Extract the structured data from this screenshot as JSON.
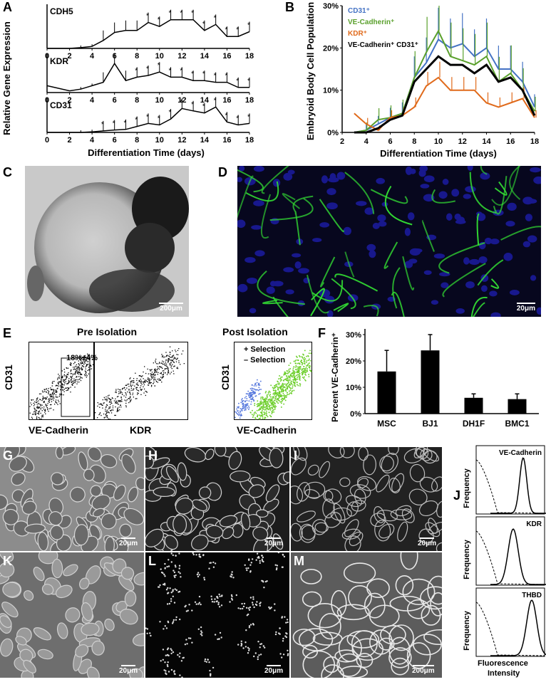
{
  "panels": {
    "A": {
      "letter": "A",
      "ylabel": "Relative Gene Expression",
      "xlabel": "Differentiation Time (days)",
      "x_ticks": [
        "0",
        "2",
        "4",
        "6",
        "8",
        "10",
        "12",
        "14",
        "16",
        "18"
      ]
    },
    "B": {
      "letter": "B",
      "ylabel": "Embryoid Body Cell Population",
      "xlabel": "Differentiation Time (days)",
      "y_ticks": [
        "0%",
        "10%",
        "20%",
        "30%"
      ],
      "x_ticks": [
        "2",
        "4",
        "6",
        "8",
        "10",
        "12",
        "14",
        "16",
        "18"
      ]
    },
    "C": {
      "letter": "C",
      "scale": "200μm"
    },
    "D": {
      "letter": "D",
      "scale": "20μm"
    },
    "E": {
      "letter": "E",
      "pre_title": "Pre Isolation",
      "post_title": "Post Isolation",
      "gate": "18%±4%",
      "ylabel": "CD31",
      "x1": "VE-Cadherin",
      "x2": "KDR",
      "post_ylabel": "CD31",
      "post_xlabel": "VE-Cadherin",
      "plus_sel": "+ Selection",
      "minus_sel": "– Selection"
    },
    "F": {
      "letter": "F",
      "ylabel": "Percent VE-Cadherin⁺",
      "y_ticks": [
        "0%",
        "10%",
        "20%",
        "30%"
      ]
    },
    "G": {
      "letter": "G",
      "scale": "20μm"
    },
    "H": {
      "letter": "H",
      "scale": "20μm"
    },
    "I": {
      "letter": "I",
      "scale": "20μm"
    },
    "K": {
      "letter": "K",
      "scale": "20μm"
    },
    "L": {
      "letter": "L",
      "scale": "20μm"
    },
    "M": {
      "letter": "M",
      "scale": "200μm"
    },
    "J": {
      "letter": "J",
      "ylabel": "Frequency",
      "xlabel_1": "Fluorescence",
      "xlabel_2": "Intensity",
      "markers": [
        "VE-Cadherin",
        "KDR",
        "THBD"
      ]
    }
  },
  "colors": {
    "cd31": "#4472c4",
    "vecad": "#5aa02c",
    "kdr": "#e06a1b",
    "double": "#000000",
    "green_stain": "#33dd33",
    "blue_stain": "#2a2aa8",
    "plus_sel": "#66cc22",
    "minus_sel": "#5577dd"
  },
  "chart_data": [
    {
      "type": "line",
      "title": "",
      "panel": "A",
      "xlabel": "Differentiation Time (days)",
      "ylabel": "Relative Gene Expression",
      "xlim": [
        0,
        18
      ],
      "series": [
        {
          "name": "CDH5",
          "x": [
            0,
            2,
            3,
            4,
            5,
            6,
            7,
            8,
            9,
            10,
            11,
            12,
            13,
            14,
            15,
            16,
            17,
            18
          ],
          "values": [
            0,
            0,
            0.02,
            0.05,
            0.2,
            0.4,
            0.45,
            0.45,
            0.65,
            0.55,
            0.72,
            0.72,
            0.72,
            0.45,
            0.6,
            0.3,
            0.3,
            0.42
          ],
          "sig": [
            9,
            10,
            11,
            12,
            13,
            14,
            15,
            16,
            17,
            18
          ]
        },
        {
          "name": "KDR",
          "x": [
            0,
            2,
            3,
            4,
            5,
            6,
            7,
            8,
            9,
            10,
            11,
            12,
            13,
            14,
            15,
            16,
            17,
            18
          ],
          "values": [
            0.2,
            0.05,
            0.1,
            0.2,
            0.3,
            0.85,
            0.35,
            0.45,
            0.5,
            0.6,
            0.45,
            0.45,
            0.35,
            0.35,
            0.3,
            0.3,
            0.15,
            0.15
          ],
          "sig": [
            8,
            9,
            10,
            11,
            12,
            13,
            14,
            15,
            16,
            17,
            18
          ]
        },
        {
          "name": "CD31",
          "x": [
            0,
            2,
            3,
            4,
            5,
            6,
            7,
            8,
            9,
            10,
            11,
            12,
            13,
            14,
            15,
            16,
            17,
            18
          ],
          "values": [
            0,
            0,
            0,
            0.02,
            0.05,
            0.08,
            0.1,
            0.2,
            0.3,
            0.25,
            0.45,
            0.8,
            0.72,
            0.65,
            0.85,
            0.35,
            0.25,
            0.3
          ],
          "sig": [
            5,
            6,
            7,
            8,
            9,
            10,
            11,
            12,
            13,
            14,
            15,
            16,
            17,
            18
          ]
        }
      ]
    },
    {
      "type": "line",
      "title": "",
      "panel": "B",
      "xlabel": "Differentiation Time (days)",
      "ylabel": "Embryoid Body Cell Population",
      "xlim": [
        2,
        18
      ],
      "ylim": [
        0,
        30
      ],
      "x": [
        3,
        4,
        5,
        6,
        7,
        8,
        9,
        10,
        11,
        12,
        13,
        14,
        15,
        16,
        17,
        18
      ],
      "series": [
        {
          "name": "CD31⁺",
          "color": "#4472c4",
          "values": [
            0,
            0.5,
            2,
            3.5,
            4.5,
            13,
            16.5,
            22,
            20,
            21,
            18,
            20,
            15,
            15,
            12,
            6
          ]
        },
        {
          "name": "VE-Cadherin⁺",
          "color": "#5aa02c",
          "values": [
            0,
            0.5,
            3,
            3.5,
            4.5,
            13,
            19,
            24,
            18,
            17,
            16,
            18,
            12,
            14,
            10,
            5
          ]
        },
        {
          "name": "KDR⁺",
          "color": "#e06a1b",
          "values": [
            4.5,
            2,
            0.5,
            3.5,
            4,
            6,
            11,
            13,
            10,
            10,
            10,
            7,
            6,
            7,
            8,
            3.5
          ]
        },
        {
          "name": "VE-Cadherin⁺ CD31⁺",
          "color": "#000000",
          "values": [
            0,
            0,
            1,
            3,
            4,
            12,
            15,
            18,
            16,
            16,
            14,
            16,
            12,
            13,
            10,
            4
          ]
        }
      ]
    },
    {
      "type": "bar",
      "title": "",
      "panel": "F",
      "ylabel": "Percent VE-Cadherin⁺",
      "ylim": [
        0,
        30
      ],
      "categories": [
        "MSC",
        "BJ1",
        "DH1F",
        "BMC1"
      ],
      "values": [
        16,
        24,
        6,
        5.5
      ],
      "errors": [
        8,
        6,
        1.5,
        2
      ]
    }
  ]
}
